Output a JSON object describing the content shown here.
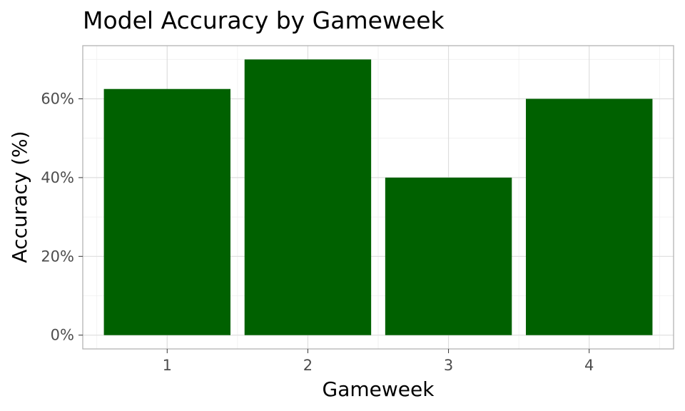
{
  "chart_data": {
    "type": "bar",
    "title": "Model Accuracy by Gameweek",
    "xlabel": "Gameweek",
    "ylabel": "Accuracy (%)",
    "categories": [
      "1",
      "2",
      "3",
      "4"
    ],
    "values": [
      62.5,
      70,
      40,
      60
    ],
    "y_ticks": [
      0,
      20,
      40,
      60
    ],
    "y_tick_labels": [
      "0%",
      "20%",
      "40%",
      "60%"
    ],
    "ylim": [
      -3.5,
      73.5
    ],
    "bar_color": "#006100",
    "grid": true,
    "legend": "none"
  }
}
